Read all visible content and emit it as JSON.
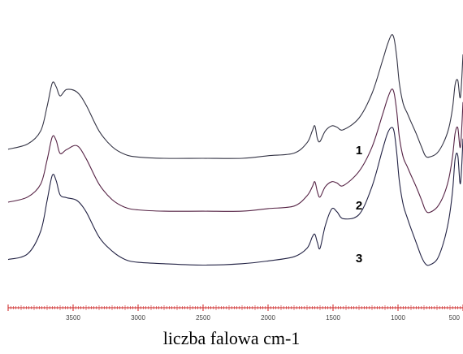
{
  "chart_data": {
    "type": "line",
    "xlabel": "liczba falowa cm-1",
    "x_reversed": true,
    "xlim": [
      4000,
      500
    ],
    "x_ticks": [
      3500,
      3000,
      2500,
      2000,
      1500,
      1000,
      500
    ],
    "x_tick_labels": [
      "3500",
      "3000",
      "2500",
      "2000",
      "1500",
      "1000",
      "500"
    ],
    "ylim": [
      0,
      1
    ],
    "grid": false,
    "colors": {
      "axis": "#cc2222",
      "curve_1": "#333344",
      "curve_2": "#552244",
      "curve_3": "#222244"
    },
    "series": [
      {
        "name": "1",
        "x": [
          4000,
          3850,
          3750,
          3700,
          3660,
          3630,
          3600,
          3550,
          3470,
          3400,
          3300,
          3200,
          3100,
          3000,
          2800,
          2500,
          2200,
          2000,
          1800,
          1700,
          1660,
          1640,
          1620,
          1600,
          1560,
          1510,
          1470,
          1420,
          1300,
          1200,
          1120,
          1080,
          1050,
          1030,
          1010,
          990,
          960,
          930,
          900,
          860,
          820,
          790,
          760,
          700,
          650,
          610,
          580,
          560,
          540,
          520,
          500
        ],
        "y": [
          0.12,
          0.16,
          0.26,
          0.45,
          0.63,
          0.6,
          0.53,
          0.58,
          0.56,
          0.46,
          0.26,
          0.14,
          0.08,
          0.06,
          0.05,
          0.05,
          0.05,
          0.07,
          0.09,
          0.17,
          0.26,
          0.3,
          0.2,
          0.18,
          0.26,
          0.3,
          0.29,
          0.27,
          0.36,
          0.55,
          0.8,
          0.93,
          1.0,
          0.97,
          0.83,
          0.63,
          0.47,
          0.4,
          0.33,
          0.24,
          0.14,
          0.07,
          0.06,
          0.09,
          0.17,
          0.28,
          0.44,
          0.62,
          0.65,
          0.52,
          0.85
        ]
      },
      {
        "name": "2",
        "x": [
          4000,
          3850,
          3750,
          3700,
          3660,
          3630,
          3600,
          3550,
          3470,
          3400,
          3300,
          3200,
          3100,
          3000,
          2800,
          2500,
          2200,
          2000,
          1800,
          1700,
          1660,
          1640,
          1620,
          1600,
          1560,
          1510,
          1470,
          1420,
          1300,
          1200,
          1120,
          1080,
          1050,
          1030,
          1010,
          990,
          960,
          930,
          900,
          860,
          820,
          790,
          760,
          700,
          650,
          610,
          580,
          560,
          540,
          520,
          500
        ],
        "y": [
          0.12,
          0.16,
          0.26,
          0.45,
          0.63,
          0.6,
          0.5,
          0.53,
          0.56,
          0.46,
          0.26,
          0.14,
          0.08,
          0.06,
          0.05,
          0.05,
          0.05,
          0.07,
          0.09,
          0.17,
          0.24,
          0.28,
          0.2,
          0.16,
          0.24,
          0.28,
          0.27,
          0.25,
          0.36,
          0.55,
          0.8,
          0.93,
          1.0,
          0.97,
          0.83,
          0.63,
          0.47,
          0.4,
          0.33,
          0.24,
          0.14,
          0.06,
          0.04,
          0.08,
          0.17,
          0.3,
          0.48,
          0.66,
          0.7,
          0.55,
          0.9
        ]
      },
      {
        "name": "3",
        "x": [
          4000,
          3850,
          3750,
          3700,
          3660,
          3630,
          3600,
          3550,
          3470,
          3400,
          3300,
          3200,
          3100,
          3000,
          2800,
          2500,
          2200,
          2000,
          1800,
          1700,
          1660,
          1640,
          1620,
          1600,
          1560,
          1510,
          1470,
          1420,
          1300,
          1200,
          1120,
          1080,
          1050,
          1030,
          1010,
          990,
          960,
          930,
          900,
          860,
          820,
          790,
          760,
          700,
          650,
          610,
          580,
          560,
          540,
          520,
          500
        ],
        "y": [
          0.06,
          0.1,
          0.26,
          0.48,
          0.66,
          0.62,
          0.52,
          0.5,
          0.48,
          0.4,
          0.22,
          0.12,
          0.06,
          0.04,
          0.03,
          0.02,
          0.03,
          0.05,
          0.08,
          0.14,
          0.22,
          0.24,
          0.18,
          0.14,
          0.3,
          0.42,
          0.4,
          0.35,
          0.38,
          0.58,
          0.84,
          0.96,
          1.0,
          0.97,
          0.82,
          0.62,
          0.45,
          0.36,
          0.28,
          0.18,
          0.08,
          0.03,
          0.02,
          0.06,
          0.18,
          0.34,
          0.55,
          0.78,
          0.8,
          0.6,
          0.92
        ]
      }
    ]
  }
}
